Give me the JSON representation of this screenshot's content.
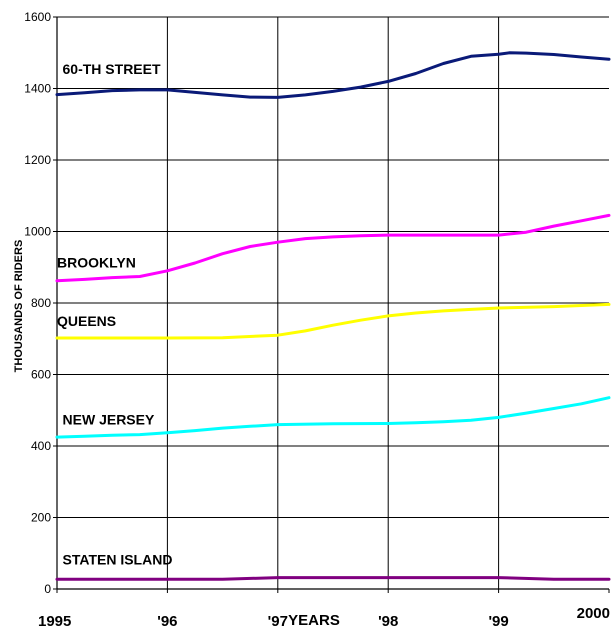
{
  "chart_data": {
    "type": "line",
    "xlabel": "YEARS",
    "ylabel": "THOUSANDS OF RIDERS",
    "ylim": [
      0,
      1600
    ],
    "xlim": [
      1995,
      2000
    ],
    "y_ticks": [
      0,
      200,
      400,
      600,
      800,
      1000,
      1200,
      1400,
      1600
    ],
    "x_tick_labels": [
      {
        "x": 1995,
        "label": "1995"
      },
      {
        "x": 1996,
        "label": "'96"
      },
      {
        "x": 1997,
        "label": "'97"
      },
      {
        "x": 1998,
        "label": "'98"
      },
      {
        "x": 1999,
        "label": "'99"
      },
      {
        "x": 2000,
        "label": "2000"
      }
    ],
    "grid": true,
    "series": [
      {
        "name": "60-TH STREET",
        "color": "#0a1a78",
        "points": [
          [
            1995.0,
            1383
          ],
          [
            1995.25,
            1388
          ],
          [
            1995.5,
            1394
          ],
          [
            1995.75,
            1396
          ],
          [
            1996.0,
            1396
          ],
          [
            1996.25,
            1389
          ],
          [
            1996.5,
            1382
          ],
          [
            1996.75,
            1376
          ],
          [
            1997.0,
            1375
          ],
          [
            1997.25,
            1382
          ],
          [
            1997.5,
            1392
          ],
          [
            1997.75,
            1404
          ],
          [
            1998.0,
            1420
          ],
          [
            1998.25,
            1442
          ],
          [
            1998.5,
            1470
          ],
          [
            1998.75,
            1490
          ],
          [
            1999.0,
            1496
          ],
          [
            1999.1,
            1500
          ],
          [
            1999.25,
            1499
          ],
          [
            1999.5,
            1495
          ],
          [
            1999.75,
            1488
          ],
          [
            2000.0,
            1482
          ]
        ]
      },
      {
        "name": "BROOKLYN",
        "color": "#ff00ff",
        "points": [
          [
            1995.0,
            862
          ],
          [
            1995.25,
            866
          ],
          [
            1995.5,
            871
          ],
          [
            1995.75,
            874
          ],
          [
            1996.0,
            890
          ],
          [
            1996.25,
            912
          ],
          [
            1996.5,
            938
          ],
          [
            1996.75,
            958
          ],
          [
            1997.0,
            970
          ],
          [
            1997.25,
            980
          ],
          [
            1997.5,
            985
          ],
          [
            1997.75,
            988
          ],
          [
            1998.0,
            990
          ],
          [
            1998.5,
            990
          ],
          [
            1999.0,
            990
          ],
          [
            1999.25,
            998
          ],
          [
            1999.5,
            1015
          ],
          [
            1999.75,
            1030
          ],
          [
            2000.0,
            1045
          ]
        ]
      },
      {
        "name": "QUEENS",
        "color": "#ffff00",
        "points": [
          [
            1995.0,
            702
          ],
          [
            1995.5,
            702
          ],
          [
            1996.0,
            702
          ],
          [
            1996.5,
            703
          ],
          [
            1997.0,
            710
          ],
          [
            1997.25,
            722
          ],
          [
            1997.5,
            738
          ],
          [
            1997.75,
            752
          ],
          [
            1998.0,
            764
          ],
          [
            1998.25,
            772
          ],
          [
            1998.5,
            778
          ],
          [
            1998.75,
            782
          ],
          [
            1999.0,
            786
          ],
          [
            1999.5,
            790
          ],
          [
            2000.0,
            796
          ]
        ]
      },
      {
        "name": "NEW JERSEY",
        "color": "#00ffff",
        "points": [
          [
            1995.0,
            425
          ],
          [
            1995.25,
            427
          ],
          [
            1995.5,
            430
          ],
          [
            1995.75,
            432
          ],
          [
            1996.0,
            437
          ],
          [
            1996.25,
            443
          ],
          [
            1996.5,
            450
          ],
          [
            1996.75,
            455
          ],
          [
            1997.0,
            460
          ],
          [
            1997.5,
            462
          ],
          [
            1998.0,
            463
          ],
          [
            1998.25,
            465
          ],
          [
            1998.5,
            468
          ],
          [
            1998.75,
            472
          ],
          [
            1999.0,
            480
          ],
          [
            1999.25,
            492
          ],
          [
            1999.5,
            505
          ],
          [
            1999.75,
            518
          ],
          [
            2000.0,
            535
          ]
        ]
      },
      {
        "name": "STATEN ISLAND",
        "color": "#800080",
        "points": [
          [
            1995.0,
            27
          ],
          [
            1995.5,
            27
          ],
          [
            1996.0,
            27
          ],
          [
            1996.5,
            27
          ],
          [
            1997.0,
            32
          ],
          [
            1997.5,
            32
          ],
          [
            1998.0,
            32
          ],
          [
            1998.5,
            32
          ],
          [
            1999.0,
            32
          ],
          [
            1999.5,
            27
          ],
          [
            2000.0,
            27
          ]
        ]
      }
    ],
    "series_labels": [
      {
        "text": "60-TH STREET",
        "x": 1995.05,
        "y": 1440
      },
      {
        "text": "BROOKLYN",
        "x": 1995.0,
        "y": 900
      },
      {
        "text": "QUEENS",
        "x": 1995.0,
        "y": 735
      },
      {
        "text": "NEW JERSEY",
        "x": 1995.05,
        "y": 460
      },
      {
        "text": "STATEN ISLAND",
        "x": 1995.05,
        "y": 68
      }
    ]
  }
}
